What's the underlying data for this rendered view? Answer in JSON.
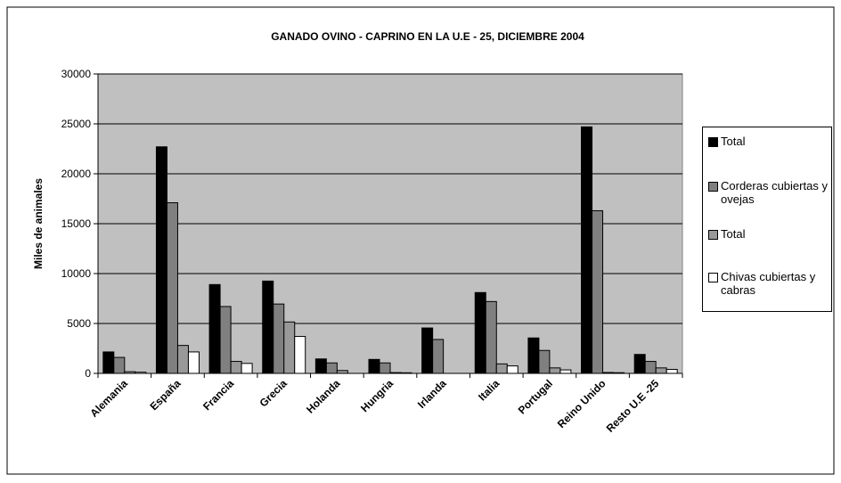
{
  "chart_data": {
    "type": "bar",
    "title": "GANADO OVINO - CAPRINO EN LA U.E - 25, DICIEMBRE 2004",
    "y_label": "Miles de animales",
    "categories": [
      "Alemania",
      "España",
      "Francia",
      "Grecia",
      "Holanda",
      "Hungria",
      "Irlanda",
      "Italia",
      "Portugal",
      "Reino Unido",
      "Resto U.E -25"
    ],
    "series": [
      {
        "name": "Total",
        "color": "#000000",
        "values": [
          2150,
          22700,
          8900,
          9250,
          1450,
          1400,
          4550,
          8100,
          3550,
          24700,
          1900
        ]
      },
      {
        "name": "Corderas cubiertas y ovejas",
        "color": "#808080",
        "values": [
          1600,
          17100,
          6700,
          6950,
          1050,
          1050,
          3400,
          7200,
          2300,
          16300,
          1200
        ]
      },
      {
        "name": "Total",
        "color": "#999999",
        "values": [
          170,
          2800,
          1200,
          5150,
          290,
          80,
          0,
          950,
          550,
          90,
          550
        ]
      },
      {
        "name": "Chivas cubiertas y cabras",
        "color": "#ffffff",
        "values": [
          120,
          2150,
          1000,
          3700,
          0,
          60,
          0,
          750,
          350,
          70,
          400
        ]
      }
    ],
    "ylim": [
      0,
      30000
    ],
    "yticks": [
      0,
      5000,
      10000,
      15000,
      20000,
      25000,
      30000
    ],
    "grid": true,
    "plot_background": "#c0c0c0",
    "legend": "right"
  }
}
